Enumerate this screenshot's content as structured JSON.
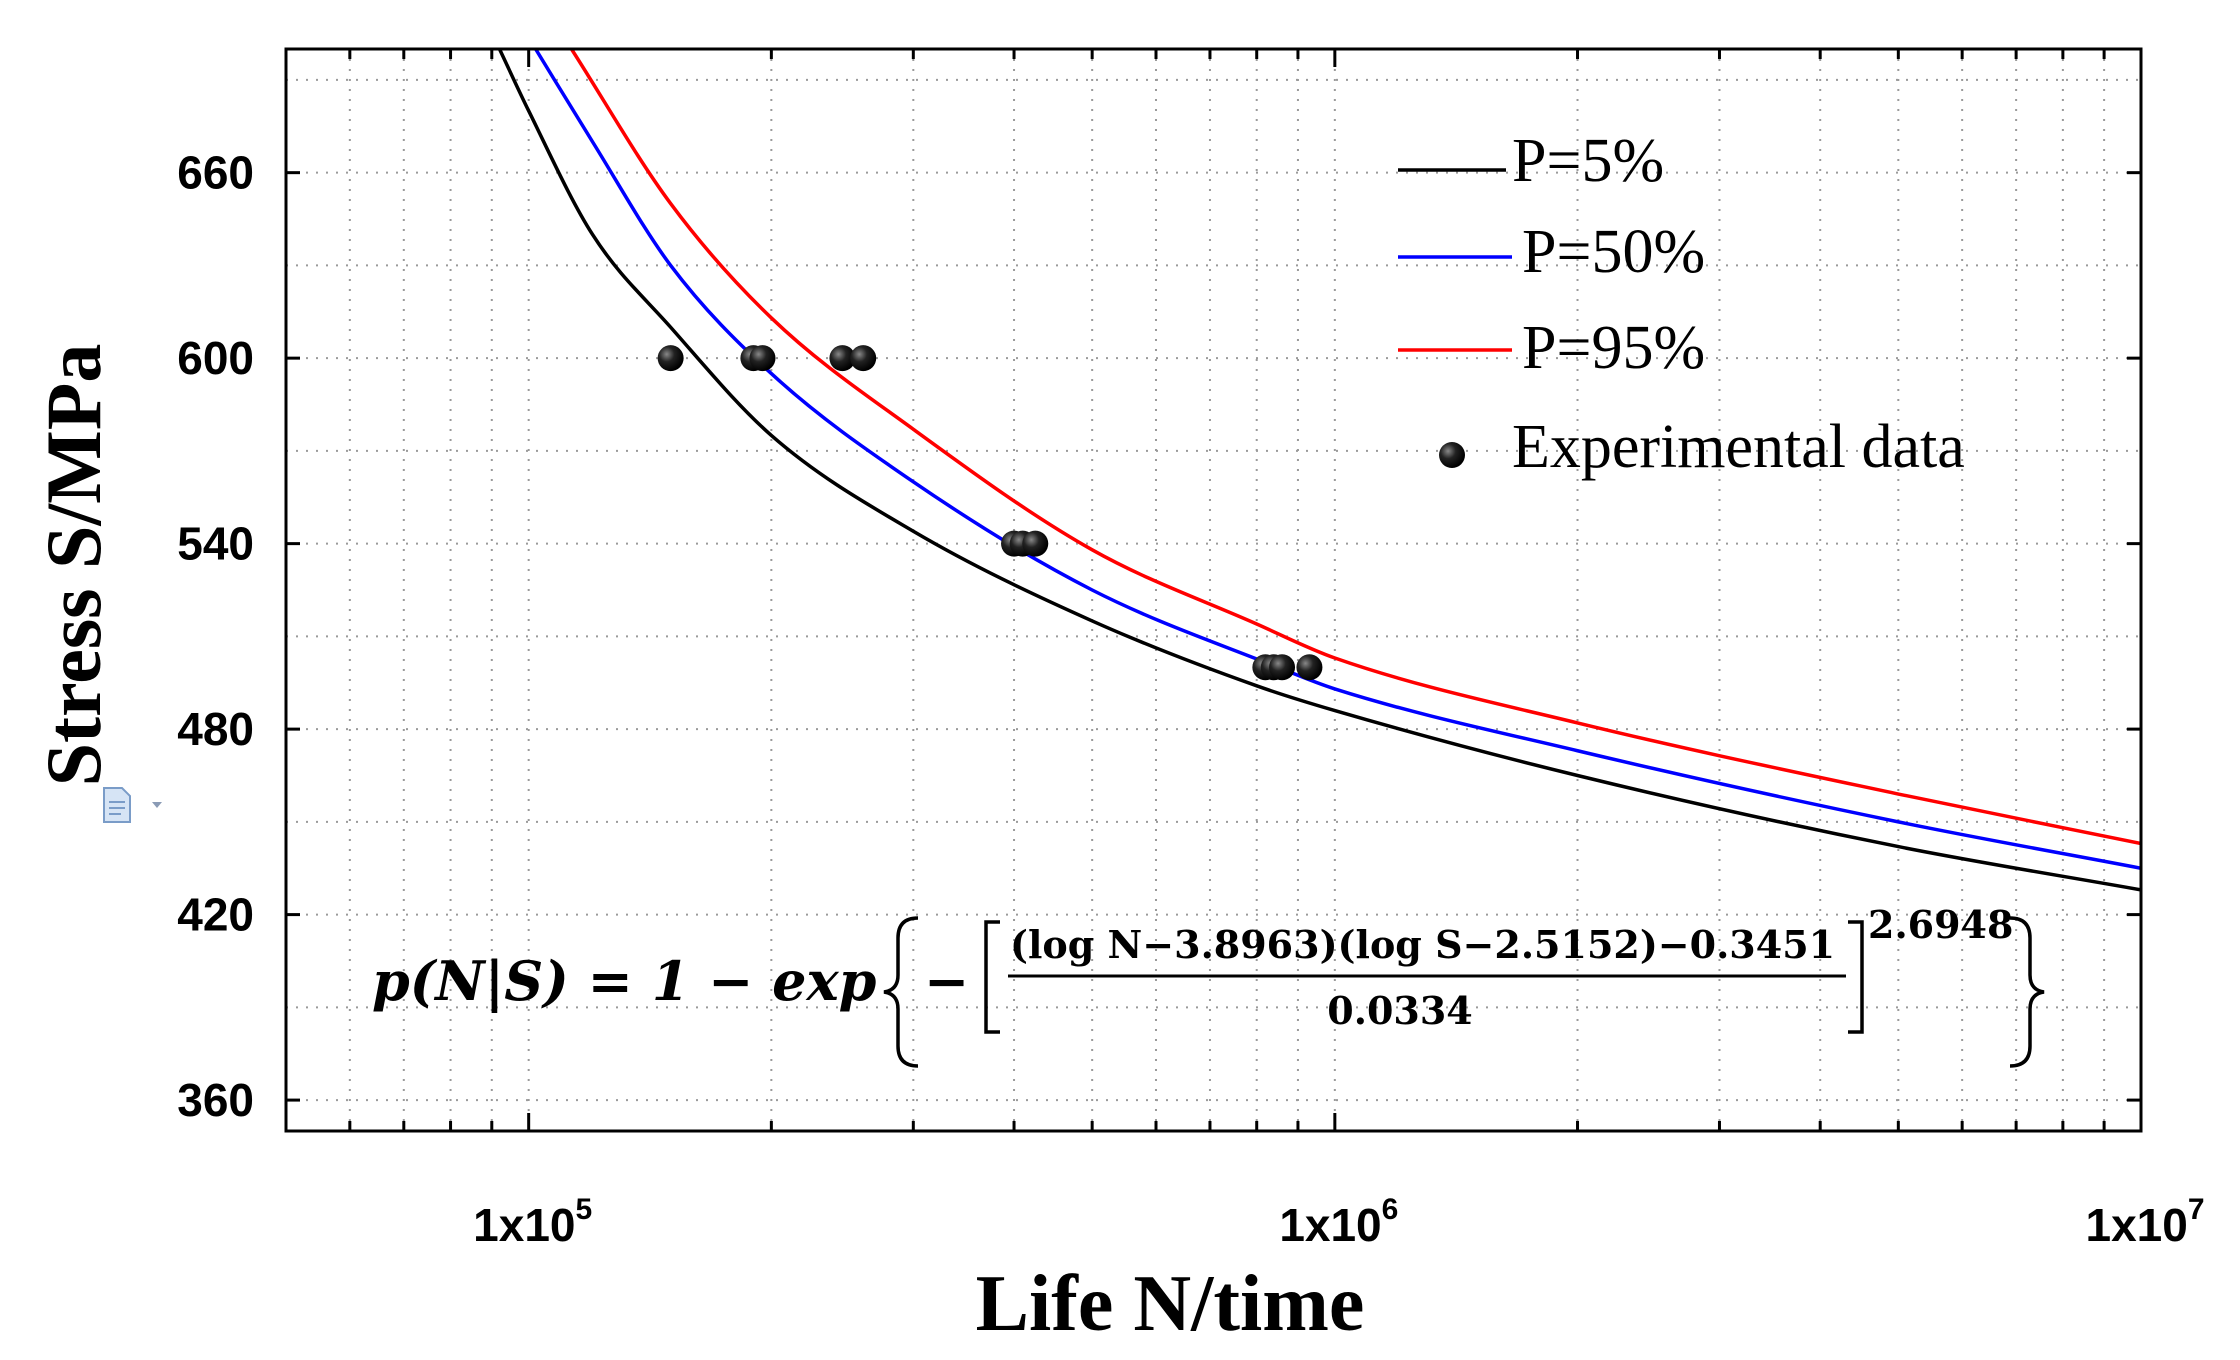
{
  "chart_data": {
    "type": "line",
    "xscale": "log",
    "xlabel": "Life N/time",
    "ylabel": "Stress S/MPa",
    "xlim": [
      50000,
      10000000
    ],
    "ylim": [
      350,
      700
    ],
    "yticks": [
      360,
      420,
      480,
      540,
      600,
      660
    ],
    "xticks": [
      {
        "value": 100000,
        "base": "1x10",
        "exp": "5"
      },
      {
        "value": 1000000,
        "base": "1x10",
        "exp": "6"
      },
      {
        "value": 10000000,
        "base": "1x10",
        "exp": "7"
      }
    ],
    "grid": true,
    "legend_position": "top-right",
    "series": [
      {
        "name": "P=5%",
        "color": "#000000",
        "points": [
          [
            92000,
            700
          ],
          [
            100000,
            680
          ],
          [
            120000,
            640
          ],
          [
            150000,
            610
          ],
          [
            200000,
            575
          ],
          [
            300000,
            544
          ],
          [
            500000,
            515
          ],
          [
            800000,
            494
          ],
          [
            1000000,
            486
          ],
          [
            2000000,
            465
          ],
          [
            5000000,
            442
          ],
          [
            10000000,
            428
          ]
        ]
      },
      {
        "name": "P=50%",
        "color": "#0000ff",
        "points": [
          [
            102000,
            700
          ],
          [
            120000,
            670
          ],
          [
            150000,
            630
          ],
          [
            200000,
            595
          ],
          [
            300000,
            560
          ],
          [
            500000,
            525
          ],
          [
            850000,
            500
          ],
          [
            1000000,
            493
          ],
          [
            2000000,
            473
          ],
          [
            5000000,
            450
          ],
          [
            10000000,
            435
          ]
        ]
      },
      {
        "name": "P=95%",
        "color": "#ff0000",
        "points": [
          [
            113000,
            700
          ],
          [
            150000,
            650
          ],
          [
            200000,
            613
          ],
          [
            300000,
            577
          ],
          [
            500000,
            538
          ],
          [
            800000,
            514
          ],
          [
            1000000,
            503
          ],
          [
            2000000,
            482
          ],
          [
            5000000,
            459
          ],
          [
            10000000,
            443
          ]
        ]
      }
    ],
    "experimental": {
      "name": "Experimental data",
      "points": [
        [
          150000,
          600
        ],
        [
          190000,
          600
        ],
        [
          195000,
          600
        ],
        [
          245000,
          600
        ],
        [
          260000,
          600
        ],
        [
          400000,
          540
        ],
        [
          410000,
          540
        ],
        [
          425000,
          540
        ],
        [
          820000,
          500
        ],
        [
          840000,
          500
        ],
        [
          860000,
          500
        ],
        [
          930000,
          500
        ]
      ]
    },
    "formula": {
      "lhs": "p(N|S) = 1 − exp",
      "numerator": "(log N−3.8963)(log S−2.5152)−0.3451",
      "denominator": "0.0334",
      "exponent": "2.6948"
    }
  }
}
